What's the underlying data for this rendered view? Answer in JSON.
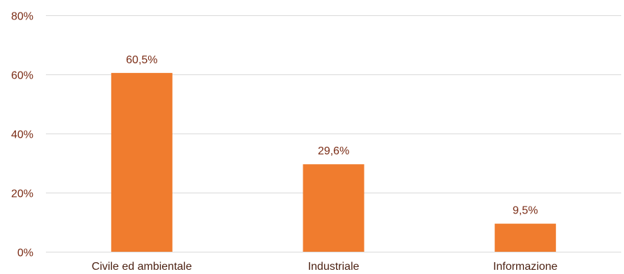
{
  "chart_data": {
    "type": "bar",
    "categories": [
      "Civile ed ambientale",
      "Industriale",
      "Informazione"
    ],
    "values": [
      60.5,
      29.6,
      9.5
    ],
    "data_labels": [
      "60,5%",
      "29,6%",
      "9,5%"
    ],
    "y_ticks": [
      0,
      20,
      40,
      60,
      80
    ],
    "y_tick_labels": [
      "0%",
      "20%",
      "40%",
      "60%",
      "80%"
    ],
    "ylim": [
      0,
      80
    ],
    "grid": true,
    "legend": "none",
    "colors": {
      "bar": "#f07c2e",
      "grid": "#d9d9d9",
      "label": "#7a2b14"
    }
  }
}
